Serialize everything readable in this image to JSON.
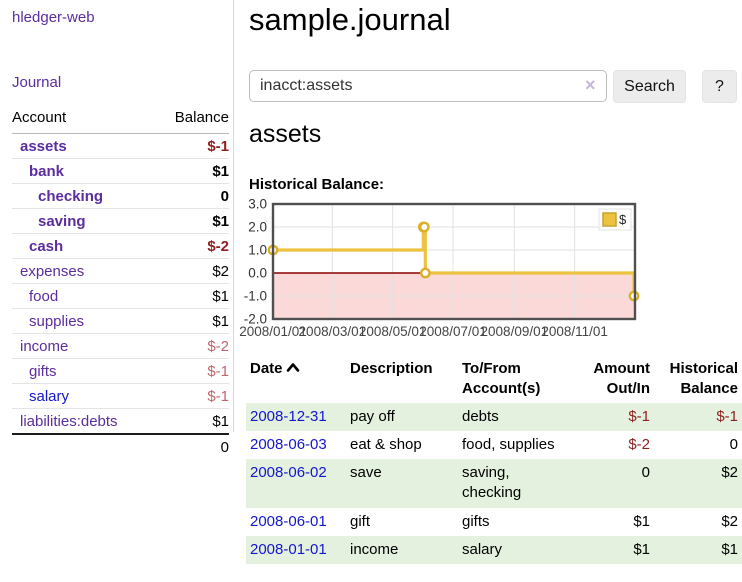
{
  "app": {
    "brand": "hledger-web",
    "nav_journal": "Journal"
  },
  "sidebar": {
    "header": {
      "account": "Account",
      "balance": "Balance"
    },
    "accounts": [
      {
        "name": "assets",
        "balance": "$-1",
        "indent": 1,
        "bold": true,
        "name_color": "purple",
        "balance_color": "darkred"
      },
      {
        "name": "bank",
        "balance": "$1",
        "indent": 2,
        "bold": true,
        "name_color": "purple",
        "balance_color": "black"
      },
      {
        "name": "checking",
        "balance": "0",
        "indent": 3,
        "bold": true,
        "name_color": "purple",
        "balance_color": "black"
      },
      {
        "name": "saving",
        "balance": "$1",
        "indent": 3,
        "bold": true,
        "name_color": "purple",
        "balance_color": "black"
      },
      {
        "name": "cash",
        "balance": "$-2",
        "indent": 2,
        "bold": true,
        "name_color": "purple",
        "balance_color": "darkred"
      },
      {
        "name": "expenses",
        "balance": "$2",
        "indent": 1,
        "bold": false,
        "name_color": "purple",
        "balance_color": "black"
      },
      {
        "name": "food",
        "balance": "$1",
        "indent": 2,
        "bold": false,
        "name_color": "purple",
        "balance_color": "black"
      },
      {
        "name": "supplies",
        "balance": "$1",
        "indent": 2,
        "bold": false,
        "name_color": "purple",
        "balance_color": "black"
      },
      {
        "name": "income",
        "balance": "$-2",
        "indent": 1,
        "bold": false,
        "name_color": "purple",
        "balance_color": "rose"
      },
      {
        "name": "gifts",
        "balance": "$-1",
        "indent": 2,
        "bold": false,
        "name_color": "purple",
        "balance_color": "rose"
      },
      {
        "name": "salary",
        "balance": "$-1",
        "indent": 2,
        "bold": false,
        "name_color": "blue",
        "balance_color": "rose"
      },
      {
        "name": "liabilities:debts",
        "balance": "$1",
        "indent": 1,
        "bold": false,
        "name_color": "purple",
        "balance_color": "black"
      }
    ],
    "total": "0"
  },
  "main": {
    "title": "sample.journal",
    "search": {
      "value": "inacct:assets",
      "clear_icon": "×",
      "button_label": "Search",
      "help_label": "?"
    },
    "account_title": "assets",
    "chart_label": "Historical Balance:"
  },
  "chart_data": {
    "type": "line",
    "step": true,
    "title": "Historical Balance",
    "x": [
      "2008-01-01",
      "2008-06-01",
      "2008-06-02",
      "2008-06-03",
      "2008-12-31"
    ],
    "x_days": [
      0,
      152,
      153,
      154,
      365
    ],
    "series": [
      {
        "name": "$",
        "values": [
          1,
          2,
          2,
          0,
          -1
        ]
      }
    ],
    "ylim": [
      -2,
      3
    ],
    "yticks": [
      "3.0",
      "2.0",
      "1.0",
      "0.0",
      "-1.0",
      "-2.0"
    ],
    "xticks": [
      {
        "label": "2008/01/01",
        "day": 0
      },
      {
        "label": "2008/03/01",
        "day": 60
      },
      {
        "label": "2008/05/01",
        "day": 121
      },
      {
        "label": "2008/07/01",
        "day": 182
      },
      {
        "label": "2008/09/01",
        "day": 244
      },
      {
        "label": "2008/11/01",
        "day": 305
      }
    ],
    "x_span_days": 366,
    "grid": true,
    "legend": [
      {
        "label": "$",
        "color": "#EDC240"
      }
    ],
    "legend_position": "top-right",
    "series_color": "#EDC240",
    "marker_stroke": "#DDAE28",
    "negative_region_color": "#FBD9D9",
    "zero_line_color": "#8B0000",
    "grid_color": "#e2e2e2",
    "border_color": "#4f4f4f"
  },
  "register": {
    "columns": [
      "Date",
      "Description",
      "To/From Account(s)",
      "Amount Out/In",
      "Historical Balance"
    ],
    "rows": [
      {
        "date": "2008-12-31",
        "description": "pay off",
        "accounts": [
          "debts"
        ],
        "amount": "$-1",
        "amount_neg": true,
        "balance": "$-1",
        "balance_neg": true,
        "highlight": true
      },
      {
        "date": "2008-06-03",
        "description": "eat & shop",
        "accounts": [
          "food",
          "supplies"
        ],
        "amount": "$-2",
        "amount_neg": true,
        "balance": "0",
        "balance_neg": false,
        "highlight": false
      },
      {
        "date": "2008-06-02",
        "description": "save",
        "accounts": [
          "saving",
          "checking"
        ],
        "amount": "0",
        "amount_neg": false,
        "balance": "$2",
        "balance_neg": false,
        "highlight": true
      },
      {
        "date": "2008-06-01",
        "description": "gift",
        "accounts": [
          "gifts"
        ],
        "amount": "$1",
        "amount_neg": false,
        "balance": "$2",
        "balance_neg": false,
        "highlight": false
      },
      {
        "date": "2008-01-01",
        "description": "income",
        "accounts": [
          "salary"
        ],
        "amount": "$1",
        "amount_neg": false,
        "balance": "$1",
        "balance_neg": false,
        "highlight": true
      }
    ]
  }
}
